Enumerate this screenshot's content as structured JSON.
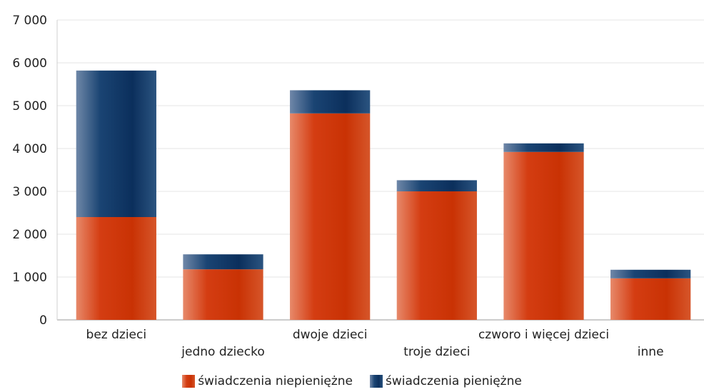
{
  "chart_data": {
    "type": "bar",
    "stacked": true,
    "categories": [
      "bez dzieci",
      "jedno dziecko",
      "dwoje dzieci",
      "troje dzieci",
      "czworo i więcej dzieci",
      "inne"
    ],
    "series": [
      {
        "name": "świadczenia niepieniężne",
        "color": "#cc3a0a",
        "values": [
          2400,
          1180,
          4820,
          3000,
          3920,
          970
        ]
      },
      {
        "name": "świadczenia pieniężne",
        "color": "#0f3563",
        "values": [
          3420,
          350,
          540,
          260,
          200,
          200
        ]
      }
    ],
    "ylim": [
      0,
      7000
    ],
    "yticks": [
      0,
      1000,
      2000,
      3000,
      4000,
      5000,
      6000,
      7000
    ],
    "ytick_labels": [
      "0",
      "1 000",
      "2 000",
      "3 000",
      "4 000",
      "5 000",
      "6 000",
      "7 000"
    ],
    "grid": true,
    "legend_position": "bottom"
  }
}
